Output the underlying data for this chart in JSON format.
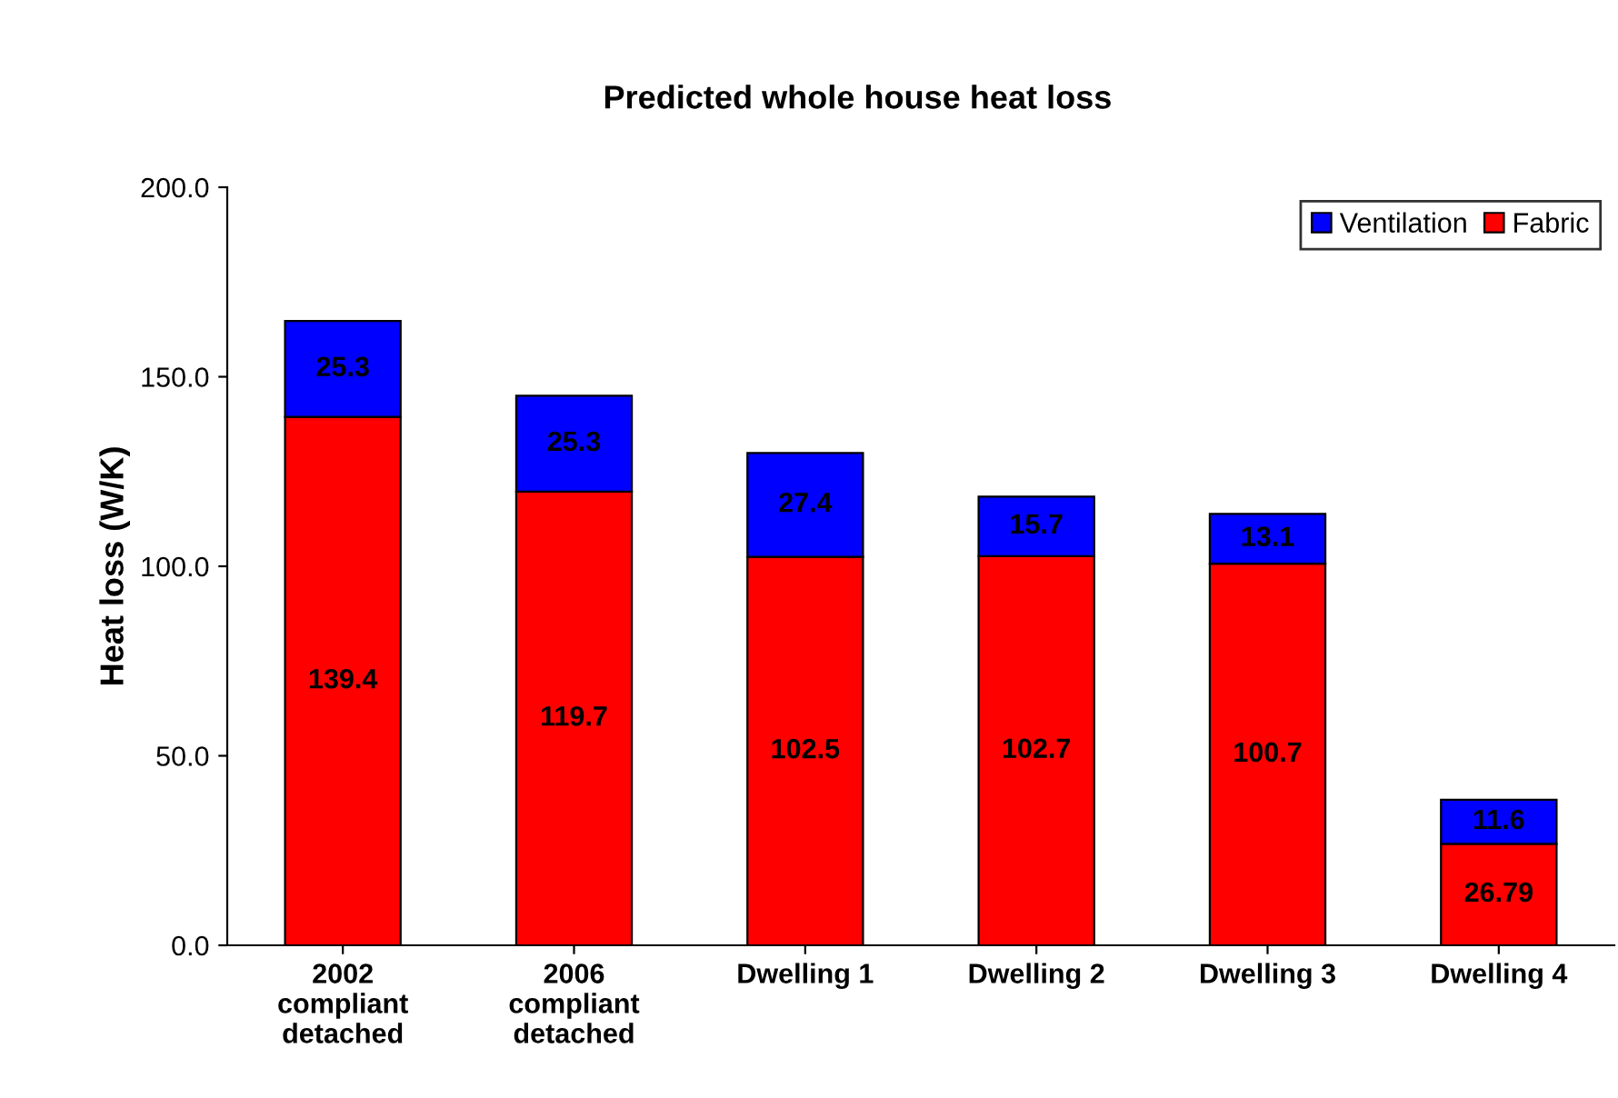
{
  "chart_data": {
    "type": "bar",
    "title": "Predicted whole house heat loss",
    "ylabel": "Heat loss (W/K)",
    "categories": [
      "2002\ncompliant\ndetached",
      "2006\ncompliant\ndetached",
      "Dwelling 1",
      "Dwelling 2",
      "Dwelling 3",
      "Dwelling 4"
    ],
    "stacked": true,
    "series": [
      {
        "name": "Fabric",
        "color": "#ff0000",
        "values": [
          139.4,
          119.7,
          102.5,
          102.7,
          100.7,
          26.79
        ]
      },
      {
        "name": "Ventilation",
        "color": "#0000ff",
        "values": [
          25.3,
          25.3,
          27.4,
          15.7,
          13.1,
          11.6
        ]
      }
    ],
    "ylim": [
      0,
      200
    ],
    "yticks": [
      {
        "value": 0,
        "label": "0.0"
      },
      {
        "value": 50,
        "label": "50.0"
      },
      {
        "value": 100,
        "label": "100.0"
      },
      {
        "value": 150,
        "label": "150.0"
      },
      {
        "value": 200,
        "label": "200.0"
      }
    ],
    "data_labels": true,
    "grid": false,
    "legend": "top right"
  }
}
